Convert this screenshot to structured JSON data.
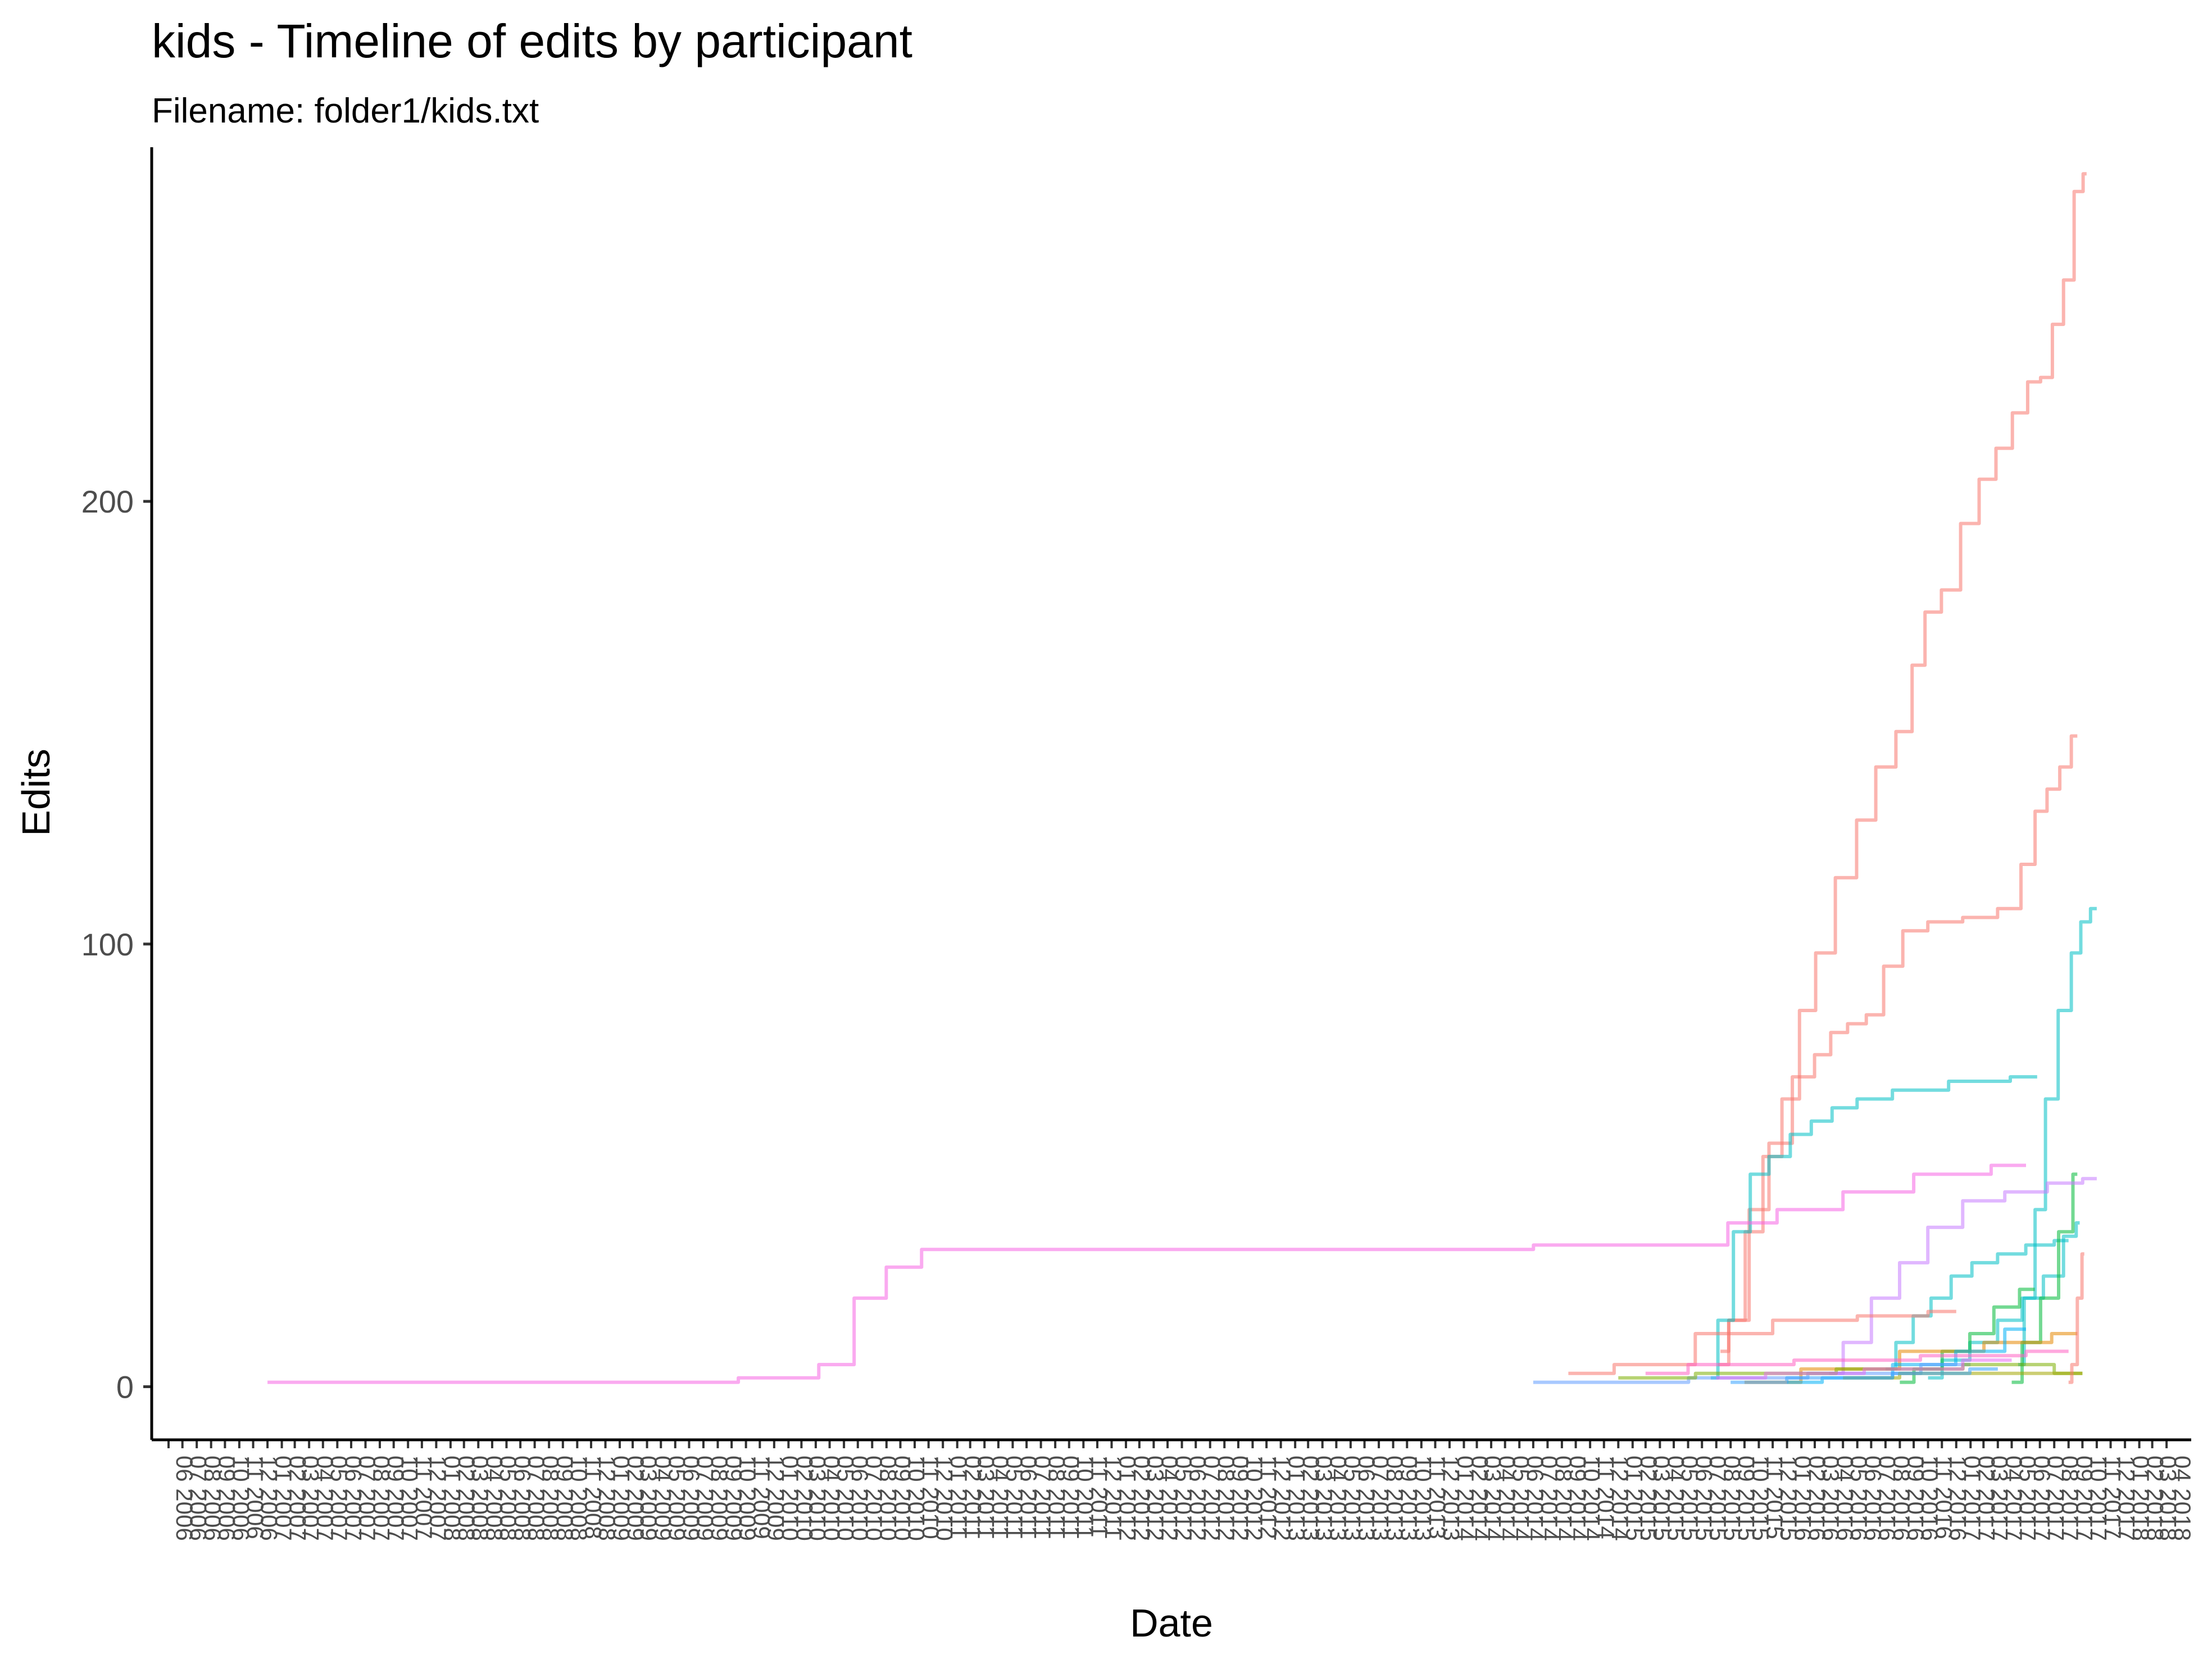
{
  "chart_data": {
    "type": "line",
    "title": "kids - Timeline of edits by participant",
    "subtitle": "Filename: folder1/kids.txt",
    "xlabel": "Date",
    "ylabel": "Edits",
    "yticks": [
      0,
      100,
      200
    ],
    "ylim": [
      -12,
      280
    ],
    "xlim": [
      "2006-06-01",
      "2018-04-30"
    ],
    "x_tick_format": "MM YYYY",
    "x_tick_interval_months": 1,
    "grid": false,
    "legend": "none",
    "series": [
      {
        "color": "#F8766D",
        "points": [
          [
            "2015-08-10",
            8
          ],
          [
            "2015-09-15",
            15
          ],
          [
            "2015-10-20",
            35
          ],
          [
            "2015-12-01",
            52
          ],
          [
            "2016-01-10",
            65
          ],
          [
            "2016-02-15",
            85
          ],
          [
            "2016-03-20",
            98
          ],
          [
            "2016-05-10",
            115
          ],
          [
            "2016-06-20",
            128
          ],
          [
            "2016-08-01",
            140
          ],
          [
            "2016-09-15",
            148
          ],
          [
            "2016-10-10",
            163
          ],
          [
            "2016-11-10",
            175
          ],
          [
            "2016-12-20",
            180
          ],
          [
            "2017-02-01",
            195
          ],
          [
            "2017-03-10",
            205
          ],
          [
            "2017-04-15",
            212
          ],
          [
            "2017-05-20",
            220
          ],
          [
            "2017-06-20",
            227
          ],
          [
            "2017-07-15",
            228
          ],
          [
            "2017-08-10",
            240
          ],
          [
            "2017-09-01",
            250
          ],
          [
            "2017-09-25",
            270
          ],
          [
            "2017-10-10",
            274
          ]
        ]
      },
      {
        "color": "#F8766D",
        "points": [
          [
            "2015-08-05",
            5
          ],
          [
            "2015-09-20",
            15
          ],
          [
            "2015-11-01",
            40
          ],
          [
            "2015-12-15",
            55
          ],
          [
            "2016-02-10",
            70
          ],
          [
            "2016-03-20",
            75
          ],
          [
            "2016-04-20",
            80
          ],
          [
            "2016-06-01",
            82
          ],
          [
            "2016-07-10",
            84
          ],
          [
            "2016-08-15",
            95
          ],
          [
            "2016-10-01",
            103
          ],
          [
            "2016-12-01",
            105
          ],
          [
            "2017-03-01",
            106
          ],
          [
            "2017-05-01",
            108
          ],
          [
            "2017-06-10",
            118
          ],
          [
            "2017-07-01",
            130
          ],
          [
            "2017-08-01",
            135
          ],
          [
            "2017-08-25",
            140
          ],
          [
            "2017-09-20",
            147
          ]
        ]
      },
      {
        "color": "#00BFC4",
        "points": [
          [
            "2015-07-20",
            2
          ],
          [
            "2015-08-20",
            15
          ],
          [
            "2015-09-25",
            35
          ],
          [
            "2015-11-01",
            48
          ],
          [
            "2015-12-15",
            52
          ],
          [
            "2016-02-01",
            57
          ],
          [
            "2016-03-15",
            60
          ],
          [
            "2016-05-01",
            63
          ],
          [
            "2016-07-01",
            65
          ],
          [
            "2016-10-01",
            67
          ],
          [
            "2017-03-01",
            69
          ],
          [
            "2017-06-25",
            70
          ]
        ]
      },
      {
        "color": "#00BFC4",
        "points": [
          [
            "2017-05-15",
            5
          ],
          [
            "2017-06-10",
            20
          ],
          [
            "2017-07-01",
            40
          ],
          [
            "2017-07-25",
            65
          ],
          [
            "2017-08-25",
            85
          ],
          [
            "2017-09-20",
            98
          ],
          [
            "2017-10-05",
            105
          ],
          [
            "2017-11-01",
            108
          ]
        ]
      },
      {
        "color": "#00BFC4",
        "points": [
          [
            "2016-08-01",
            4
          ],
          [
            "2016-09-15",
            10
          ],
          [
            "2016-10-15",
            16
          ],
          [
            "2016-12-01",
            20
          ],
          [
            "2017-01-10",
            25
          ],
          [
            "2017-03-01",
            28
          ],
          [
            "2017-05-01",
            30
          ],
          [
            "2017-07-01",
            32
          ],
          [
            "2017-09-01",
            33
          ]
        ]
      },
      {
        "color": "#00BFC4",
        "points": [
          [
            "2016-11-01",
            2
          ],
          [
            "2017-01-01",
            6
          ],
          [
            "2017-03-01",
            10
          ],
          [
            "2017-05-01",
            15
          ],
          [
            "2017-06-15",
            20
          ],
          [
            "2017-08-01",
            25
          ],
          [
            "2017-09-10",
            34
          ],
          [
            "2017-09-25",
            37
          ]
        ]
      },
      {
        "color": "#00BA38",
        "points": [
          [
            "2016-09-01",
            1
          ],
          [
            "2016-11-01",
            4
          ],
          [
            "2017-01-01",
            8
          ],
          [
            "2017-03-01",
            12
          ],
          [
            "2017-04-15",
            18
          ],
          [
            "2017-06-20",
            22
          ]
        ]
      },
      {
        "color": "#00BA38",
        "points": [
          [
            "2017-05-01",
            1
          ],
          [
            "2017-06-15",
            10
          ],
          [
            "2017-07-20",
            20
          ],
          [
            "2017-09-01",
            35
          ],
          [
            "2017-09-20",
            48
          ]
        ]
      },
      {
        "color": "#C77CFF",
        "points": [
          [
            "2016-04-01",
            3
          ],
          [
            "2016-06-01",
            10
          ],
          [
            "2016-08-01",
            20
          ],
          [
            "2016-10-01",
            28
          ],
          [
            "2016-12-01",
            36
          ],
          [
            "2017-03-01",
            42
          ],
          [
            "2017-06-01",
            44
          ],
          [
            "2017-09-01",
            46
          ],
          [
            "2017-11-01",
            47
          ]
        ]
      },
      {
        "color": "#F564E3",
        "points": [
          [
            "2007-01-01",
            1
          ],
          [
            "2009-06-01",
            1
          ],
          [
            "2010-03-01",
            2
          ],
          [
            "2010-05-15",
            5
          ],
          [
            "2010-08-01",
            20
          ],
          [
            "2010-10-01",
            27
          ],
          [
            "2011-01-01",
            31
          ],
          [
            "2013-06-01",
            31
          ],
          [
            "2015-08-01",
            32
          ],
          [
            "2015-09-20",
            37
          ],
          [
            "2016-03-01",
            40
          ],
          [
            "2016-07-01",
            44
          ],
          [
            "2017-01-01",
            48
          ],
          [
            "2017-06-01",
            50
          ]
        ]
      },
      {
        "color": "#F8766D",
        "points": [
          [
            "2014-09-15",
            3
          ],
          [
            "2015-04-01",
            5
          ],
          [
            "2015-09-01",
            12
          ],
          [
            "2016-03-01",
            15
          ],
          [
            "2016-09-01",
            16
          ],
          [
            "2017-01-01",
            17
          ]
        ]
      },
      {
        "color": "#E58700",
        "points": [
          [
            "2015-10-01",
            1
          ],
          [
            "2016-06-01",
            4
          ],
          [
            "2016-12-01",
            8
          ],
          [
            "2017-06-01",
            10
          ],
          [
            "2017-09-20",
            12
          ]
        ]
      },
      {
        "color": "#00B0F6",
        "points": [
          [
            "2016-01-01",
            1
          ],
          [
            "2016-06-01",
            2
          ],
          [
            "2016-11-01",
            5
          ],
          [
            "2017-03-01",
            8
          ],
          [
            "2017-06-01",
            13
          ]
        ]
      },
      {
        "color": "#619CFF",
        "points": [
          [
            "2014-07-01",
            1
          ],
          [
            "2015-02-01",
            1
          ],
          [
            "2015-10-01",
            2
          ],
          [
            "2016-07-01",
            3
          ],
          [
            "2017-02-01",
            5
          ]
        ]
      },
      {
        "color": "#7CAE00",
        "points": [
          [
            "2015-01-01",
            2
          ],
          [
            "2015-12-01",
            3
          ],
          [
            "2016-09-01",
            4
          ],
          [
            "2017-06-01",
            5
          ],
          [
            "2017-10-01",
            3
          ]
        ]
      },
      {
        "color": "#FF61C3",
        "points": [
          [
            "2015-03-01",
            3
          ],
          [
            "2015-09-01",
            5
          ],
          [
            "2016-06-01",
            6
          ],
          [
            "2017-03-01",
            7
          ],
          [
            "2017-09-01",
            8
          ]
        ]
      },
      {
        "color": "#A3A500",
        "points": [
          [
            "2016-05-01",
            2
          ],
          [
            "2017-01-01",
            3
          ],
          [
            "2017-06-01",
            3
          ],
          [
            "2017-10-01",
            3
          ]
        ]
      },
      {
        "color": "#35A2FF",
        "points": [
          [
            "2015-09-01",
            1
          ],
          [
            "2016-05-01",
            2
          ],
          [
            "2016-12-01",
            3
          ],
          [
            "2017-04-01",
            4
          ]
        ]
      },
      {
        "color": "#E76BF3",
        "points": [
          [
            "2015-08-01",
            2
          ],
          [
            "2016-03-01",
            3
          ],
          [
            "2016-10-01",
            4
          ],
          [
            "2017-05-01",
            6
          ]
        ]
      },
      {
        "color": "#F8766D",
        "points": [
          [
            "2017-09-01",
            1
          ],
          [
            "2017-09-15",
            5
          ],
          [
            "2017-09-25",
            20
          ],
          [
            "2017-10-05",
            30
          ]
        ]
      }
    ]
  }
}
